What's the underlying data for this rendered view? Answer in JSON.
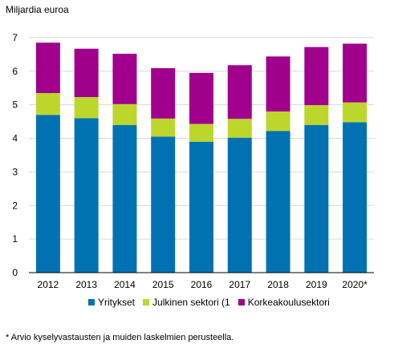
{
  "chart_data": {
    "type": "bar",
    "stacked": true,
    "unit_label": "Miljardia euroa",
    "categories": [
      "2012",
      "2013",
      "2014",
      "2015",
      "2016",
      "2017",
      "2018",
      "2019",
      "2020*"
    ],
    "series": [
      {
        "name": "Yritykset",
        "color": "#0072b2",
        "values": [
          4.7,
          4.6,
          4.4,
          4.05,
          3.9,
          4.02,
          4.22,
          4.4,
          4.48
        ]
      },
      {
        "name": "Julkinen sektori (1",
        "color": "#bcd62c",
        "values": [
          0.65,
          0.63,
          0.62,
          0.54,
          0.53,
          0.56,
          0.58,
          0.59,
          0.59
        ]
      },
      {
        "name": "Korkeakoulusektori",
        "color": "#a0008c",
        "values": [
          1.5,
          1.44,
          1.5,
          1.5,
          1.52,
          1.6,
          1.64,
          1.73,
          1.75
        ]
      }
    ],
    "yticks": [
      0,
      1,
      2,
      3,
      4,
      5,
      6,
      7
    ],
    "ylim": [
      0,
      7.5
    ],
    "grid": true,
    "legend_position": "bottom",
    "footnote": "* Arvio  kyselyvastausten ja muiden laskelmien perusteella."
  }
}
